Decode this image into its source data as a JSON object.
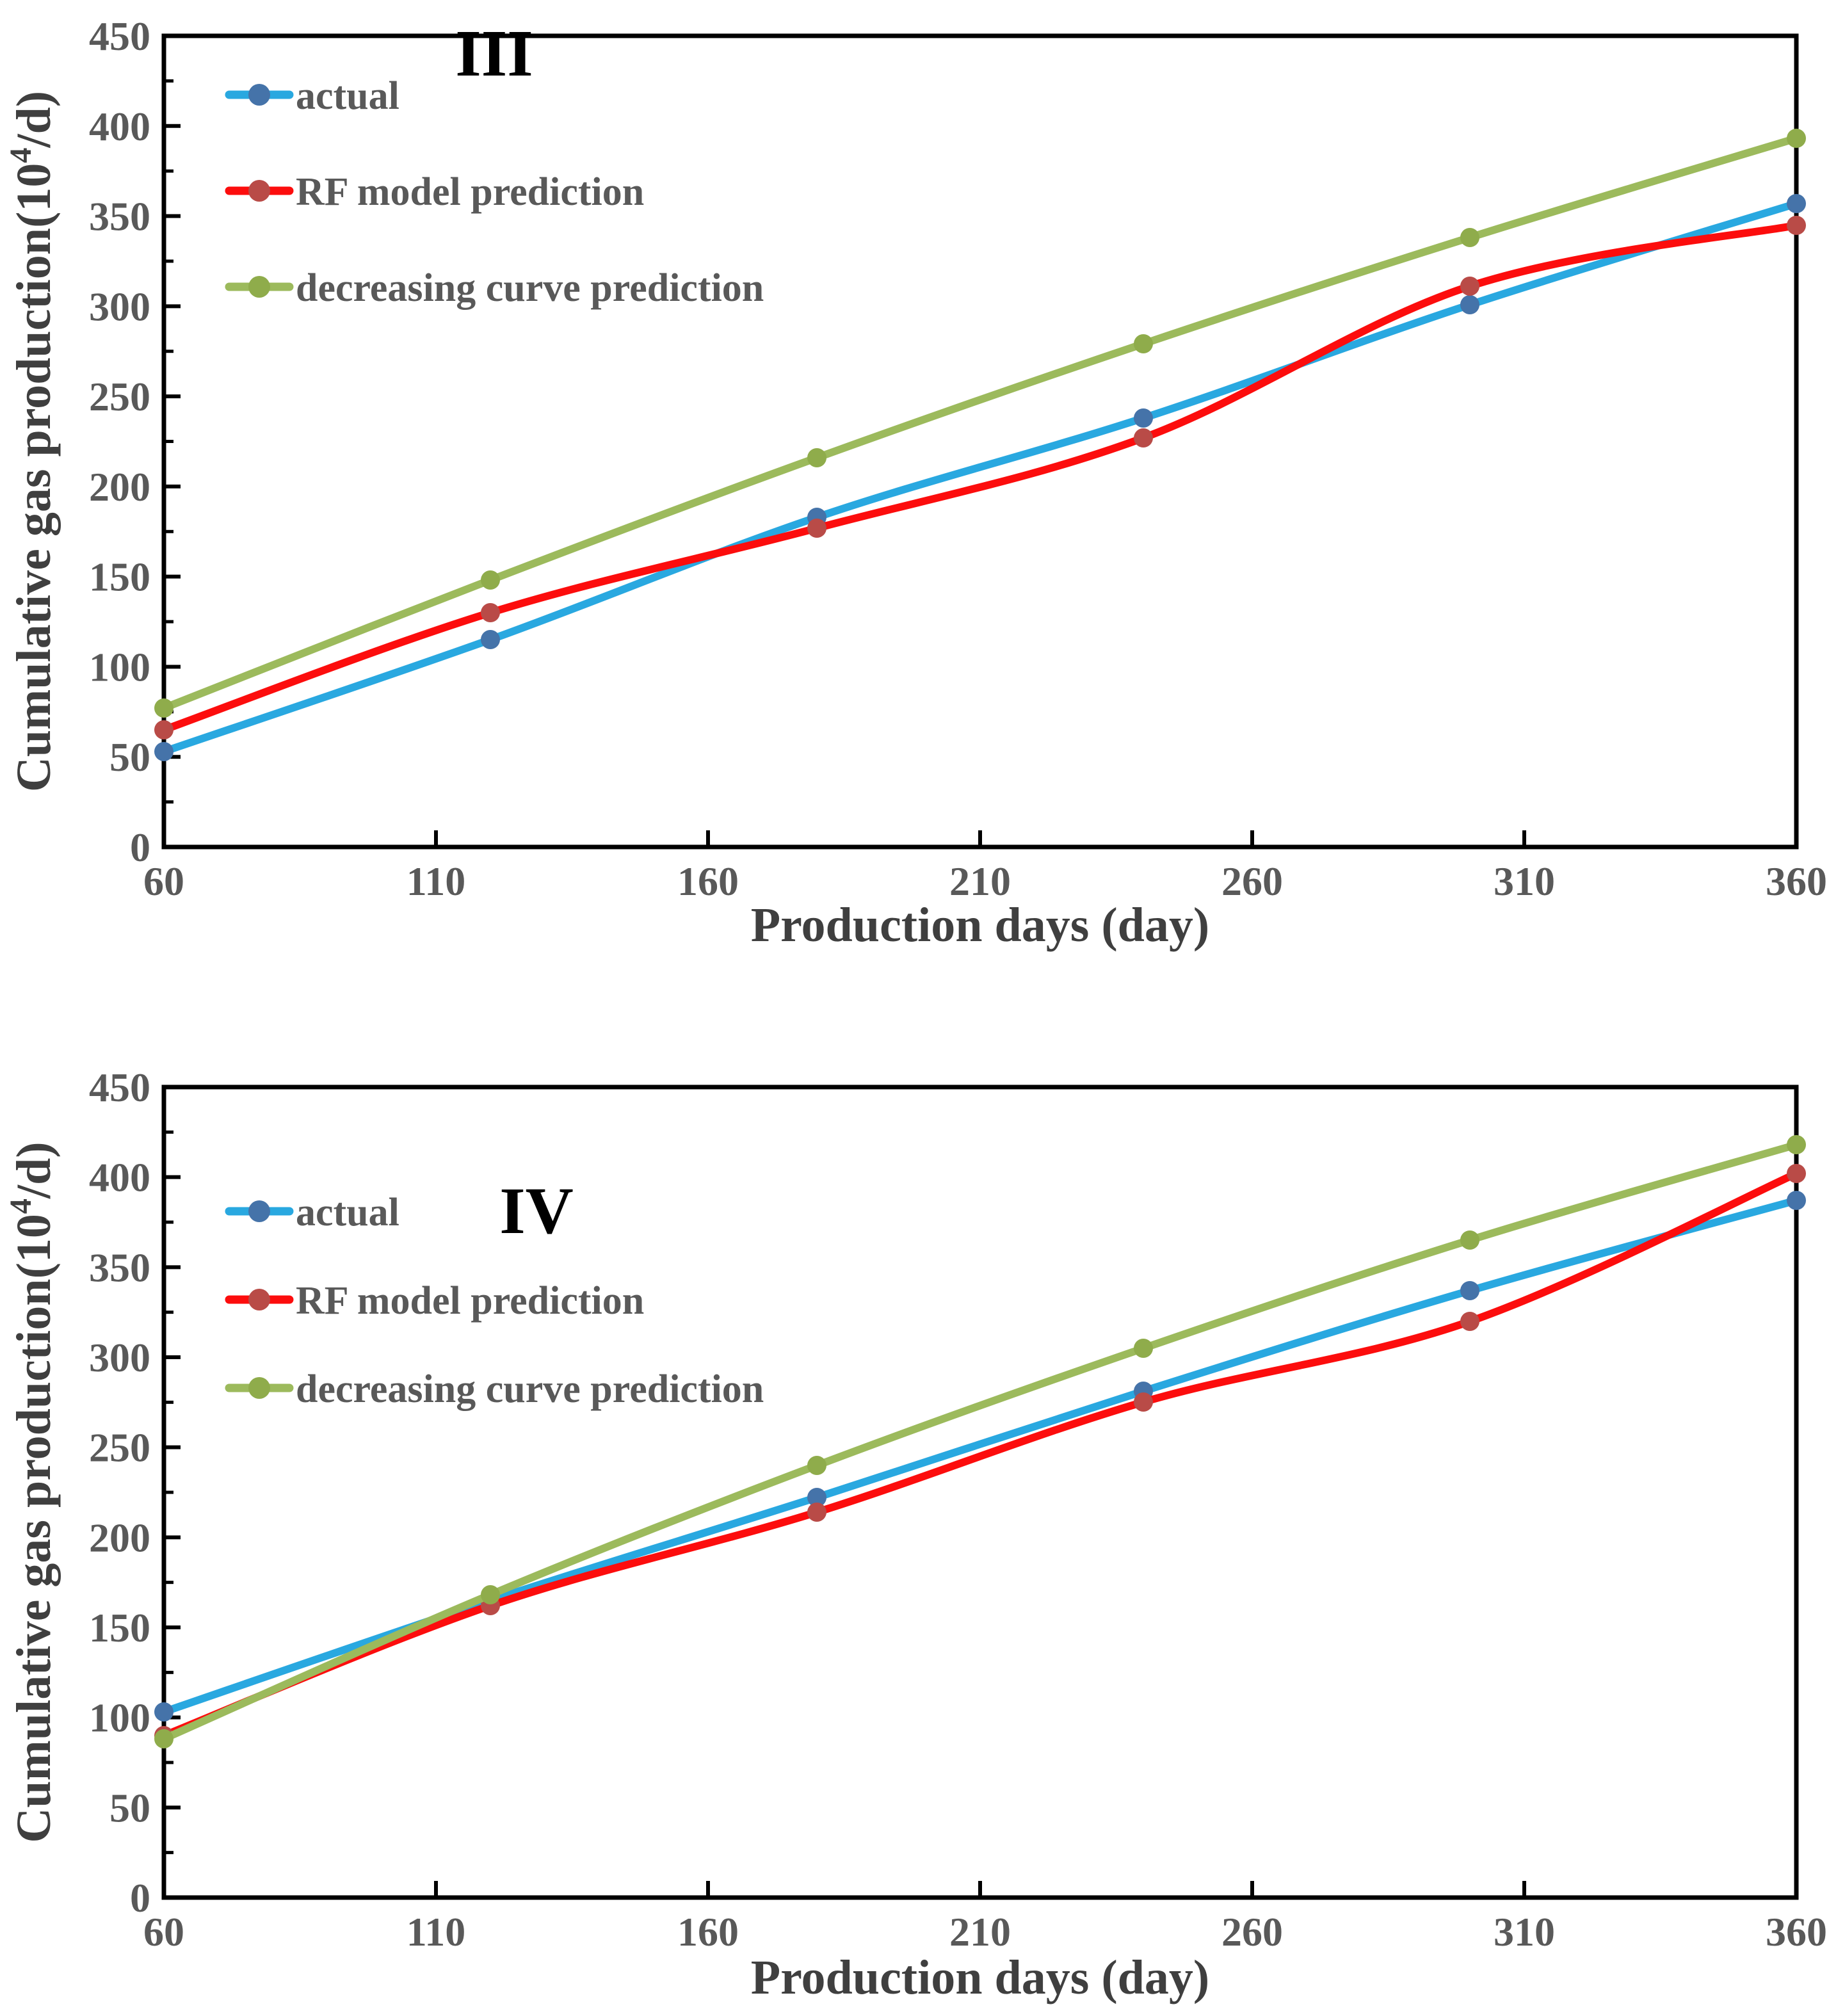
{
  "page": {
    "background": "#ffffff"
  },
  "colors": {
    "axis_line": "#000000",
    "tick_label": "#595959",
    "legend_label": "#595959",
    "axis_title": "#3f3f3f",
    "chart_title": "#000000",
    "actual_line": "#29A8E0",
    "actual_marker": "#4573A9",
    "rf_line": "#FC0D0D",
    "rf_marker": "#B94B47",
    "decreasing_line": "#9CBA5C",
    "decreasing_marker": "#8FAC4B"
  },
  "chart_data": {
    "type": "line",
    "charts": [
      {
        "id": "chart-1",
        "title": "III",
        "xlabel": "Production days (day)",
        "ylabel_pre": "Cumulative gas production(10",
        "ylabel_sup": "4",
        "ylabel_post": "/d)",
        "xlim": [
          60,
          360
        ],
        "ylim": [
          0,
          450
        ],
        "x_tick_labels": [
          "60",
          "110",
          "160",
          "210",
          "260",
          "310",
          "360"
        ],
        "x_tick_values": [
          60,
          110,
          160,
          210,
          260,
          310,
          360
        ],
        "y_tick_labels": [
          "0",
          "50",
          "100",
          "150",
          "200",
          "250",
          "300",
          "350",
          "400",
          "450"
        ],
        "y_tick_values": [
          0,
          50,
          100,
          150,
          200,
          250,
          300,
          350,
          400,
          450
        ],
        "y_minor_step": 25,
        "grid": "off",
        "legend_position": "inside top-left",
        "x": [
          60,
          120,
          180,
          240,
          300,
          360
        ],
        "series": [
          {
            "name": "actual",
            "line_color_key": "actual_line",
            "marker_color_key": "actual_marker",
            "values": [
              53,
              115,
              183,
              238,
              301,
              357
            ]
          },
          {
            "name": "RF model prediction",
            "line_color_key": "rf_line",
            "marker_color_key": "rf_marker",
            "values": [
              65,
              130,
              177,
              227,
              311,
              345
            ]
          },
          {
            "name": "decreasing curve prediction",
            "line_color_key": "decreasing_line",
            "marker_color_key": "decreasing_marker",
            "values": [
              77,
              148,
              216,
              279,
              338,
              393
            ]
          }
        ]
      },
      {
        "id": "chart-2",
        "title": "IV",
        "xlabel": "Production days (day)",
        "ylabel_pre": "Cumulative gas production(10",
        "ylabel_sup": "4",
        "ylabel_post": "/d)",
        "xlim": [
          60,
          360
        ],
        "ylim": [
          0,
          450
        ],
        "x_tick_labels": [
          "60",
          "110",
          "160",
          "210",
          "260",
          "310",
          "360"
        ],
        "x_tick_values": [
          60,
          110,
          160,
          210,
          260,
          310,
          360
        ],
        "y_tick_labels": [
          "0",
          "50",
          "100",
          "150",
          "200",
          "250",
          "300",
          "350",
          "400",
          "450"
        ],
        "y_tick_values": [
          0,
          50,
          100,
          150,
          200,
          250,
          300,
          350,
          400,
          450
        ],
        "y_minor_step": 25,
        "grid": "off",
        "legend_position": "inside top-left",
        "x": [
          60,
          120,
          180,
          240,
          300,
          360
        ],
        "series": [
          {
            "name": "actual",
            "line_color_key": "actual_line",
            "marker_color_key": "actual_marker",
            "values": [
              103,
              165,
              222,
              281,
              337,
              387
            ]
          },
          {
            "name": "RF model prediction",
            "line_color_key": "rf_line",
            "marker_color_key": "rf_marker",
            "values": [
              90,
              162,
              214,
              275,
              320,
              402
            ]
          },
          {
            "name": "decreasing curve prediction",
            "line_color_key": "decreasing_line",
            "marker_color_key": "decreasing_marker",
            "values": [
              88,
              168,
              240,
              305,
              365,
              418
            ]
          }
        ]
      }
    ]
  }
}
